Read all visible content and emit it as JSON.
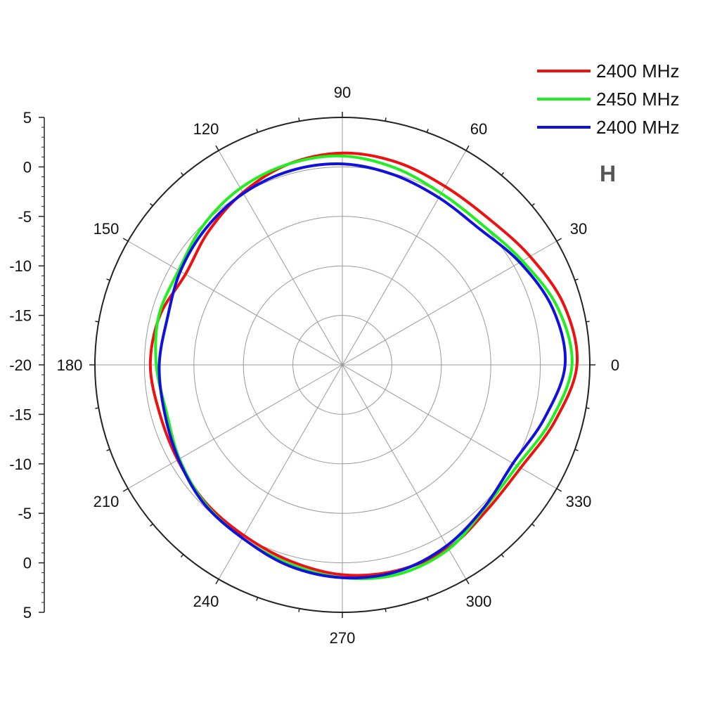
{
  "chart_data": {
    "type": "polar-line",
    "panel_label": "H",
    "angle_unit": "degrees",
    "angle_tick_labels": [
      "0",
      "30",
      "60",
      "90",
      "120",
      "150",
      "180",
      "210",
      "240",
      "270",
      "300",
      "330"
    ],
    "radial_tick_labels": [
      "5",
      "0",
      "-5",
      "-10",
      "-15",
      "-20",
      "-15",
      "-10",
      "-5",
      "0",
      "5"
    ],
    "rlim": [
      -20,
      5
    ],
    "radial_grid_values": [
      -15,
      -10,
      -5,
      0,
      5
    ],
    "grid": true,
    "legend_position": "top-right",
    "angles": [
      0,
      15,
      30,
      45,
      60,
      75,
      90,
      105,
      120,
      135,
      150,
      165,
      180,
      195,
      210,
      225,
      240,
      255,
      270,
      285,
      300,
      315,
      330,
      345,
      360
    ],
    "series": [
      {
        "name": "2400 MHz",
        "color": "#ee1111",
        "values": [
          3.7,
          3.2,
          1.9,
          0.9,
          0.8,
          1.2,
          1.4,
          1.0,
          0.1,
          -0.9,
          -1.7,
          -0.9,
          -0.6,
          -0.9,
          -0.8,
          -0.4,
          -0.1,
          0.5,
          1.2,
          1.5,
          1.4,
          0.7,
          0.8,
          2.2,
          3.7
        ]
      },
      {
        "name": "2450 MHz",
        "color": "#22ee22",
        "values": [
          3.2,
          2.5,
          1.0,
          0.0,
          0.0,
          0.6,
          1.1,
          1.0,
          0.6,
          -0.1,
          -0.9,
          -0.8,
          -1.2,
          -1.6,
          -1.0,
          -0.3,
          0.2,
          0.8,
          1.5,
          1.9,
          1.5,
          0.4,
          0.4,
          1.8,
          3.2
        ]
      },
      {
        "name": "2400 MHz",
        "color": "#1111dd",
        "values": [
          2.5,
          2.0,
          0.7,
          -0.5,
          -0.5,
          -0.1,
          0.3,
          0.3,
          0.0,
          -0.5,
          -1.1,
          -1.7,
          -1.5,
          -1.4,
          -0.9,
          -0.2,
          0.2,
          1.0,
          1.5,
          1.6,
          1.1,
          0.3,
          -0.1,
          1.1,
          2.5
        ]
      }
    ]
  }
}
